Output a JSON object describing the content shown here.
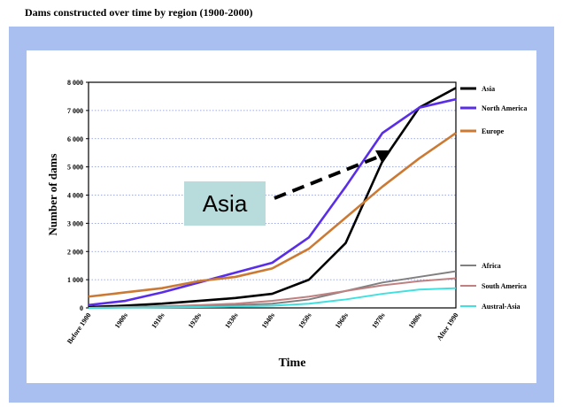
{
  "chart_data": {
    "type": "line",
    "title": "Dams constructed over time by region (1900-2000)",
    "x_label": "Time",
    "y_label": "Number of dams",
    "annotation": "Asia",
    "categories": [
      "Before 1900",
      "1900s",
      "1910s",
      "1920s",
      "1930s",
      "1940s",
      "1950s",
      "1960s",
      "1970s",
      "1980s",
      "After 1990"
    ],
    "series": [
      {
        "name": "Asia",
        "color": "#000000",
        "values": [
          30,
          80,
          150,
          250,
          350,
          500,
          1000,
          2300,
          5200,
          7100,
          7800
        ]
      },
      {
        "name": "North America",
        "color": "#5a2ee8",
        "values": [
          100,
          250,
          550,
          900,
          1250,
          1600,
          2500,
          4300,
          6200,
          7100,
          7400
        ]
      },
      {
        "name": "Europe",
        "color": "#cc7a33",
        "values": [
          400,
          550,
          700,
          950,
          1100,
          1400,
          2100,
          3200,
          4300,
          5300,
          6200
        ]
      },
      {
        "name": "Africa",
        "color": "#808080",
        "values": [
          0,
          20,
          40,
          60,
          100,
          150,
          300,
          600,
          900,
          1100,
          1300
        ]
      },
      {
        "name": "South America",
        "color": "#c08080",
        "values": [
          0,
          30,
          60,
          100,
          150,
          250,
          400,
          600,
          800,
          950,
          1050
        ]
      },
      {
        "name": "Austral-Asia",
        "color": "#40e0e0",
        "values": [
          0,
          10,
          20,
          30,
          50,
          80,
          150,
          300,
          500,
          650,
          700
        ]
      }
    ],
    "ylim": [
      0,
      8000
    ],
    "yticks": [
      0,
      {
        "value": 1000,
        "label": "1 000"
      },
      {
        "value": 2000,
        "label": "2 000"
      },
      {
        "value": 3000,
        "label": "3 000"
      },
      {
        "value": 4000,
        "label": "4 000"
      },
      {
        "value": 5000,
        "label": "5 000"
      },
      {
        "value": 6000,
        "label": "6 000"
      },
      {
        "value": 7000,
        "label": "7 000"
      },
      {
        "value": 8000,
        "label": "8 000"
      }
    ],
    "grid": true
  }
}
